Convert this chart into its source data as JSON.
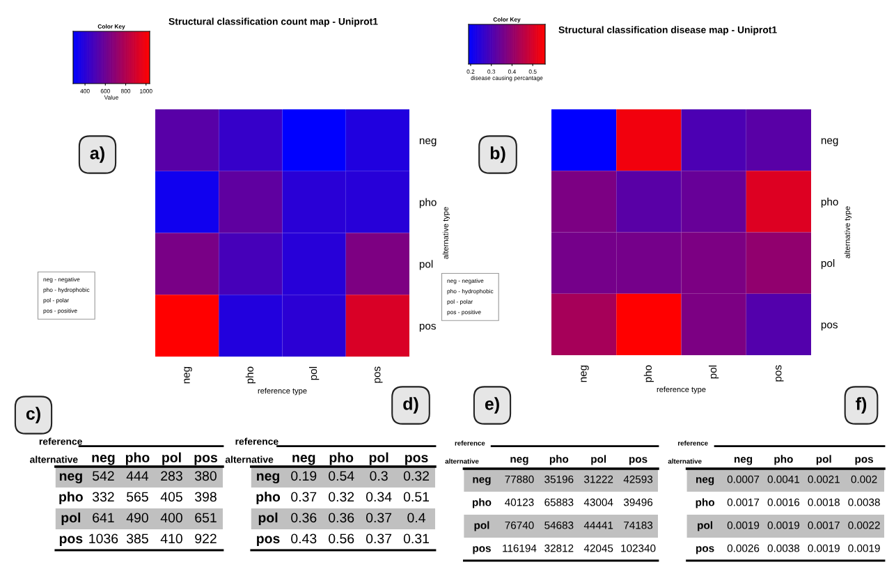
{
  "chart_data": [
    {
      "type": "heatmap",
      "title": "Structural classification count map - Uniprot1",
      "legend_title": "Color Key",
      "clabel": "Value",
      "clim": [
        283,
        1036
      ],
      "cticks": [
        400,
        600,
        800,
        1000
      ],
      "xlabel": "reference type",
      "ylabel": "alternative type",
      "categories": [
        "neg",
        "pho",
        "pol",
        "pos"
      ],
      "y_categories": [
        "neg",
        "pho",
        "pol",
        "pos"
      ],
      "cells": [
        [
          542,
          444,
          283,
          380
        ],
        [
          332,
          565,
          405,
          398
        ],
        [
          641,
          490,
          400,
          651
        ],
        [
          1036,
          385,
          410,
          922
        ]
      ],
      "annotations": [
        "a)",
        "neg - negative",
        "pho - hydrophobic",
        "pol - polar",
        "pos - positive"
      ]
    },
    {
      "type": "heatmap",
      "title": "Structural classification disease map - Uniprot1",
      "legend_title": "Color Key",
      "clabel": "disease causing percantage",
      "clim": [
        0.19,
        0.56
      ],
      "cticks": [
        0.2,
        0.3,
        0.4,
        0.5
      ],
      "xlabel": "reference type",
      "ylabel": "alternative type",
      "categories": [
        "neg",
        "pho",
        "pol",
        "pos"
      ],
      "y_categories": [
        "neg",
        "pho",
        "pol",
        "pos"
      ],
      "cells": [
        [
          0.19,
          0.54,
          0.3,
          0.32
        ],
        [
          0.37,
          0.32,
          0.34,
          0.51
        ],
        [
          0.36,
          0.36,
          0.37,
          0.4
        ],
        [
          0.43,
          0.56,
          0.37,
          0.31
        ]
      ],
      "annotations": [
        "b)",
        "neg - negative",
        "pho - hydrophobic",
        "pol - polar",
        "pos - positive"
      ]
    },
    {
      "type": "heatmap",
      "xlabel": "reference",
      "ylabel": "alternative",
      "data_labels": true,
      "categories": [
        "neg",
        "pho",
        "pol",
        "pos"
      ],
      "y_categories": [
        "neg",
        "pho",
        "pol",
        "pos"
      ],
      "cells": [
        [
          542,
          444,
          283,
          380
        ],
        [
          332,
          565,
          405,
          398
        ],
        [
          641,
          490,
          400,
          651
        ],
        [
          1036,
          385,
          410,
          922
        ]
      ],
      "annotations": [
        "c)"
      ]
    },
    {
      "type": "heatmap",
      "xlabel": "reference",
      "ylabel": "alternative",
      "data_labels": true,
      "categories": [
        "neg",
        "pho",
        "pol",
        "pos"
      ],
      "y_categories": [
        "neg",
        "pho",
        "pol",
        "pos"
      ],
      "cells": [
        [
          0.19,
          0.54,
          0.3,
          0.32
        ],
        [
          0.37,
          0.32,
          0.34,
          0.51
        ],
        [
          0.36,
          0.36,
          0.37,
          0.4
        ],
        [
          0.43,
          0.56,
          0.37,
          0.31
        ]
      ],
      "annotations": [
        "d)"
      ]
    },
    {
      "type": "heatmap",
      "xlabel": "reference",
      "ylabel": "alternative",
      "data_labels": true,
      "categories": [
        "neg",
        "pho",
        "pol",
        "pos"
      ],
      "y_categories": [
        "neg",
        "pho",
        "pol",
        "pos"
      ],
      "cells": [
        [
          77880,
          35196,
          31222,
          42593
        ],
        [
          40123,
          65883,
          43004,
          39496
        ],
        [
          76740,
          54683,
          44441,
          74183
        ],
        [
          116194,
          32812,
          42045,
          102340
        ]
      ],
      "annotations": [
        "e)"
      ]
    },
    {
      "type": "heatmap",
      "xlabel": "reference",
      "ylabel": "alternative",
      "data_labels": true,
      "categories": [
        "neg",
        "pho",
        "pol",
        "pos"
      ],
      "y_categories": [
        "neg",
        "pho",
        "pol",
        "pos"
      ],
      "cells": [
        [
          0.0007,
          0.0041,
          0.0021,
          0.002
        ],
        [
          0.0017,
          0.0016,
          0.0018,
          0.0038
        ],
        [
          0.0019,
          0.0019,
          0.0017,
          0.0022
        ],
        [
          0.0026,
          0.0038,
          0.0019,
          0.0019
        ]
      ],
      "annotations": [
        "f)"
      ]
    }
  ]
}
